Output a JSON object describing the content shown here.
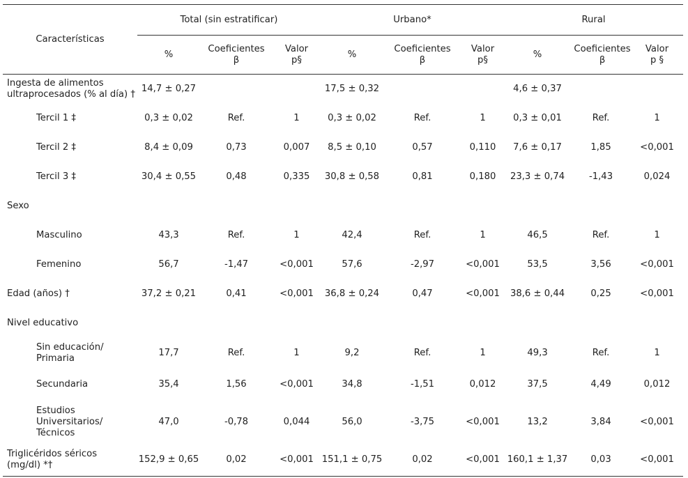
{
  "header": {
    "characteristics": "Características",
    "groups": [
      "Total (sin estratificar)",
      "Urbano*",
      "Rural"
    ],
    "sub": {
      "pct": "%",
      "coef": "Coeficientes β",
      "valor_total": "Valor p§",
      "valor_urbano": "Valor p§",
      "valor_rural": "Valor p §"
    }
  },
  "rows": [
    {
      "label": "Ingesta de alimentos ultraprocesados (% al día) †",
      "cells": [
        "14,7 ± 0,27",
        "",
        "",
        "17,5 ± 0,32",
        "",
        "",
        "4,6 ± 0,37",
        "",
        ""
      ]
    },
    {
      "label": "Tercil 1 ‡",
      "cells": [
        "0,3 ± 0,02",
        "Ref.",
        "1",
        "0,3 ± 0,02",
        "Ref.",
        "1",
        "0,3 ± 0,01",
        "Ref.",
        "1"
      ]
    },
    {
      "label": "Tercil 2 ‡",
      "cells": [
        "8,4 ± 0,09",
        "0,73",
        "0,007",
        "8,5 ± 0,10",
        "0,57",
        "0,110",
        "7,6 ± 0,17",
        "1,85",
        "<0,001"
      ]
    },
    {
      "label": "Tercil 3 ‡",
      "cells": [
        "30,4 ± 0,55",
        "0,48",
        "0,335",
        "30,8 ± 0,58",
        "0,81",
        "0,180",
        "23,3 ± 0,74",
        "-1,43",
        "0,024"
      ]
    },
    {
      "label": "Sexo",
      "cells": [
        "",
        "",
        "",
        "",
        "",
        "",
        "",
        "",
        ""
      ]
    },
    {
      "label": "Masculino",
      "cells": [
        "43,3",
        "Ref.",
        "1",
        "42,4",
        "Ref.",
        "1",
        "46,5",
        "Ref.",
        "1"
      ]
    },
    {
      "label": "Femenino",
      "cells": [
        "56,7",
        "-1,47",
        "<0,001",
        "57,6",
        "-2,97",
        "<0,001",
        "53,5",
        "3,56",
        "<0,001"
      ]
    },
    {
      "label": "Edad (años) †",
      "cells": [
        "37,2 ± 0,21",
        "0,41",
        "<0,001",
        "36,8 ± 0,24",
        "0,47",
        "<0,001",
        "38,6 ± 0,44",
        "0,25",
        "<0,001"
      ]
    },
    {
      "label": "Nivel educativo",
      "cells": [
        "",
        "",
        "",
        "",
        "",
        "",
        "",
        "",
        ""
      ]
    },
    {
      "label": "Sin educación/ Primaria",
      "cells": [
        "17,7",
        "Ref.",
        "1",
        "9,2",
        "Ref.",
        "1",
        "49,3",
        "Ref.",
        "1"
      ]
    },
    {
      "label": "Secundaria",
      "cells": [
        "35,4",
        "1,56",
        "<0,001",
        "34,8",
        "-1,51",
        "0,012",
        "37,5",
        "4,49",
        "0,012"
      ]
    },
    {
      "label": "Estudios Universitarios/ Técnicos",
      "cells": [
        "47,0",
        "-0,78",
        "0,044",
        "56,0",
        "-3,75",
        "<0,001",
        "13,2",
        "3,84",
        "<0,001"
      ]
    },
    {
      "label": "Triglicéridos séricos (mg/dl) *†",
      "cells": [
        "152,9 ± 0,65",
        "0,02",
        "<0,001",
        "151,1 ± 0,75",
        "0,02",
        "<0,001",
        "160,1 ± 1,37",
        "0,03",
        "<0,001"
      ]
    }
  ]
}
